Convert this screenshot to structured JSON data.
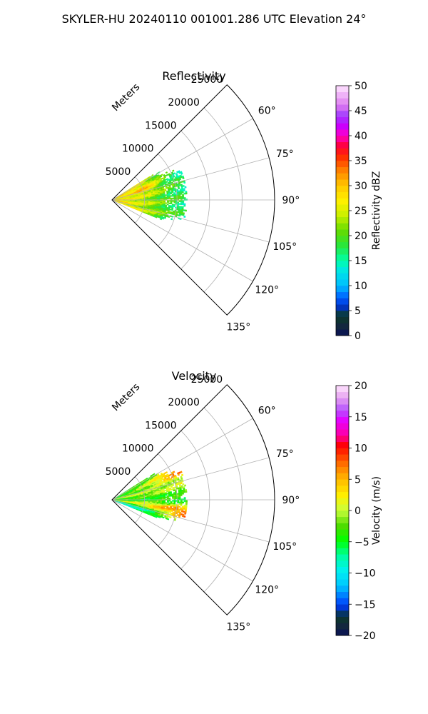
{
  "suptitle": "SKYLER-HU  20240110  001001.286 UTC Elevation 24°",
  "chart_data": [
    {
      "type": "heatmap",
      "title": "Reflectivity",
      "range_axis_label": "Meters",
      "range_ticks": [
        5000,
        10000,
        15000,
        20000,
        25000
      ],
      "range_tick_labels": [
        "5000",
        "10000",
        "15000",
        "20000",
        "25000"
      ],
      "range_max_m": 25000,
      "azimuth_range_deg": [
        45,
        135
      ],
      "azimuth_ticks": [
        60,
        75,
        90,
        105,
        120,
        135
      ],
      "azimuth_tick_labels": [
        "60°",
        "75°",
        "90°",
        "105°",
        "120°",
        "135°"
      ],
      "grid": true,
      "data_extent_m": 11500,
      "data_azimuth_range_deg": [
        58,
        112
      ],
      "colorbar": {
        "label": "Reflectivity dBZ",
        "min": 0,
        "max": 50,
        "ticks": [
          0,
          5,
          10,
          15,
          20,
          25,
          30,
          35,
          40,
          45,
          50
        ],
        "tick_labels": [
          "0",
          "5",
          "10",
          "15",
          "20",
          "25",
          "30",
          "35",
          "40",
          "45",
          "50"
        ]
      },
      "field_samples": [
        {
          "azimuth_deg": 70,
          "range_m": 5000,
          "value": 35
        },
        {
          "azimuth_deg": 80,
          "range_m": 3000,
          "value": 27
        },
        {
          "azimuth_deg": 90,
          "range_m": 6000,
          "value": 20
        },
        {
          "azimuth_deg": 100,
          "range_m": 8000,
          "value": 17
        },
        {
          "azimuth_deg": 105,
          "range_m": 4000,
          "value": 22
        },
        {
          "azimuth_deg": 85,
          "range_m": 10500,
          "value": 14
        }
      ]
    },
    {
      "type": "heatmap",
      "title": "Velocity",
      "range_axis_label": "Meters",
      "range_ticks": [
        5000,
        10000,
        15000,
        20000,
        25000
      ],
      "range_tick_labels": [
        "5000",
        "10000",
        "15000",
        "20000",
        "25000"
      ],
      "range_max_m": 25000,
      "azimuth_range_deg": [
        45,
        135
      ],
      "azimuth_ticks": [
        60,
        75,
        90,
        105,
        120,
        135
      ],
      "azimuth_tick_labels": [
        "60°",
        "75°",
        "90°",
        "105°",
        "120°",
        "135°"
      ],
      "grid": true,
      "data_extent_m": 11500,
      "data_azimuth_range_deg": [
        58,
        112
      ],
      "colorbar": {
        "label": "Velocity (m/s)",
        "min": -20,
        "max": 20,
        "ticks": [
          -20,
          -15,
          -10,
          -5,
          0,
          5,
          10,
          15,
          20
        ],
        "tick_labels": [
          "−20",
          "−15",
          "−10",
          "−5",
          "0",
          "5",
          "10",
          "15",
          "20"
        ]
      },
      "field_samples": [
        {
          "azimuth_deg": 65,
          "range_m": 7000,
          "value": 13
        },
        {
          "azimuth_deg": 75,
          "range_m": 4000,
          "value": 3
        },
        {
          "azimuth_deg": 90,
          "range_m": 6000,
          "value": -5
        },
        {
          "azimuth_deg": 97,
          "range_m": 5000,
          "value": 13
        },
        {
          "azimuth_deg": 103,
          "range_m": 7500,
          "value": 16
        },
        {
          "azimuth_deg": 108,
          "range_m": 4000,
          "value": -9
        }
      ]
    }
  ]
}
